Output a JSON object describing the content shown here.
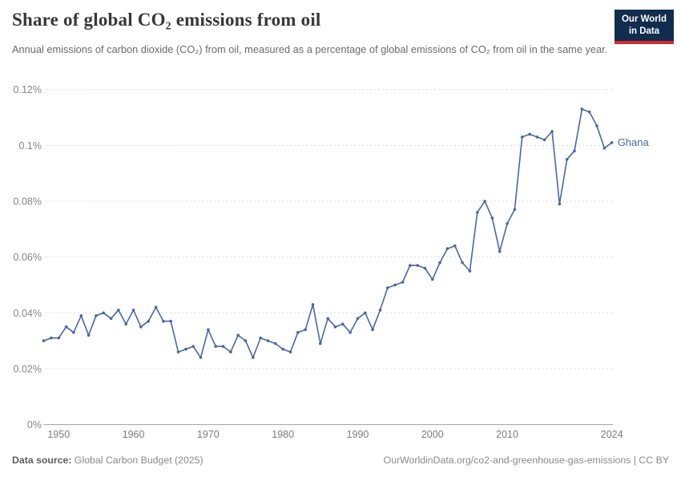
{
  "header": {
    "title": "Share of global CO₂ emissions from oil",
    "subtitle": "Annual emissions of carbon dioxide (CO₂) from oil, measured as a percentage of global emissions of CO₂ from oil in the same year.",
    "logo_line1": "Our World",
    "logo_line2": "in Data"
  },
  "footer": {
    "source_label": "Data source:",
    "source_value": "Global Carbon Budget (2025)",
    "credit": "OurWorldinData.org/co2-and-greenhouse-gas-emissions | CC BY"
  },
  "colors": {
    "line": "#4a68a5",
    "grid": "#dcdcdc",
    "axis": "#a0a0a0",
    "tick_label": "#878787",
    "logo_bg": "#102d4e",
    "logo_red": "#d7282f"
  },
  "chart_data": {
    "type": "line",
    "title": "Share of global CO₂ emissions from oil",
    "entity": "Ghana",
    "unit": "%",
    "grid": "dashed-horizontal",
    "legend": "end-of-line-label",
    "ylim": [
      0,
      0.12
    ],
    "yticks": [
      {
        "v": 0,
        "label": "0%"
      },
      {
        "v": 0.02,
        "label": "0.02%"
      },
      {
        "v": 0.04,
        "label": "0.04%"
      },
      {
        "v": 0.06,
        "label": "0.06%"
      },
      {
        "v": 0.08,
        "label": "0.08%"
      },
      {
        "v": 0.1,
        "label": "0.1%"
      },
      {
        "v": 0.12,
        "label": "0.12%"
      }
    ],
    "xticks": [
      1950,
      1960,
      1970,
      1980,
      1990,
      2000,
      2010,
      2024
    ],
    "x": [
      1948,
      1949,
      1950,
      1951,
      1952,
      1953,
      1954,
      1955,
      1956,
      1957,
      1958,
      1959,
      1960,
      1961,
      1962,
      1963,
      1964,
      1965,
      1966,
      1967,
      1968,
      1969,
      1970,
      1971,
      1972,
      1973,
      1974,
      1975,
      1976,
      1977,
      1978,
      1979,
      1980,
      1981,
      1982,
      1983,
      1984,
      1985,
      1986,
      1987,
      1988,
      1989,
      1990,
      1991,
      1992,
      1993,
      1994,
      1995,
      1996,
      1997,
      1998,
      1999,
      2000,
      2001,
      2002,
      2003,
      2004,
      2005,
      2006,
      2007,
      2008,
      2009,
      2010,
      2011,
      2012,
      2013,
      2014,
      2015,
      2016,
      2017,
      2018,
      2019,
      2020,
      2021,
      2022,
      2023,
      2024
    ],
    "values": [
      0.03,
      0.031,
      0.031,
      0.035,
      0.033,
      0.039,
      0.032,
      0.039,
      0.04,
      0.038,
      0.041,
      0.036,
      0.041,
      0.035,
      0.037,
      0.042,
      0.037,
      0.037,
      0.026,
      0.027,
      0.028,
      0.024,
      0.034,
      0.028,
      0.028,
      0.026,
      0.032,
      0.03,
      0.024,
      0.031,
      0.03,
      0.029,
      0.027,
      0.026,
      0.033,
      0.034,
      0.043,
      0.029,
      0.038,
      0.035,
      0.036,
      0.033,
      0.038,
      0.04,
      0.034,
      0.041,
      0.049,
      0.05,
      0.051,
      0.057,
      0.057,
      0.056,
      0.052,
      0.058,
      0.063,
      0.064,
      0.058,
      0.055,
      0.076,
      0.08,
      0.074,
      0.062,
      0.072,
      0.077,
      0.103,
      0.104,
      0.103,
      0.102,
      0.105,
      0.079,
      0.095,
      0.098,
      0.113,
      0.112,
      0.107,
      0.099,
      0.101
    ]
  }
}
